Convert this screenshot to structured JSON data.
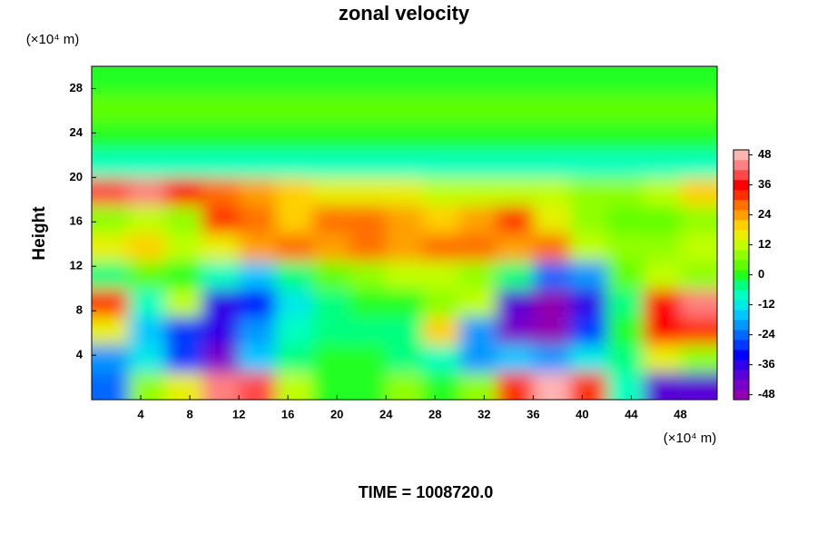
{
  "chart_data": {
    "type": "contour",
    "title": "zonal velocity",
    "y_unit": "(×10⁴ m)",
    "x_unit": "(×10⁴ m)",
    "ylabel": "Height",
    "footer": "TIME = 1008720.0",
    "xlim": [
      0,
      51
    ],
    "ylim": [
      0,
      30
    ],
    "xticks": [
      4,
      8,
      12,
      16,
      20,
      24,
      28,
      32,
      36,
      40,
      44,
      48
    ],
    "yticks": [
      4,
      8,
      12,
      16,
      20,
      24,
      28
    ],
    "zlim": [
      -50,
      50
    ],
    "zticks": [
      48,
      36,
      24,
      12,
      0,
      -12,
      -24,
      -36,
      -48
    ],
    "colors": [
      "#9000b0",
      "#7a00c8",
      "#5a00d8",
      "#3000e8",
      "#0000ff",
      "#0038ff",
      "#0068ff",
      "#0098ff",
      "#00c8ff",
      "#00e8e8",
      "#00ffc0",
      "#00ff80",
      "#20ff20",
      "#60ff00",
      "#90ff00",
      "#c0ff00",
      "#e8f000",
      "#ffd000",
      "#ffa000",
      "#ff7000",
      "#ff3000",
      "#ff0000",
      "#ff4848",
      "#ff8080",
      "#ffb4b4"
    ],
    "x": [
      1.5,
      4.5,
      7.5,
      10.5,
      13.5,
      16.5,
      19.5,
      22.5,
      25.5,
      28.5,
      31.5,
      34.5,
      37.5,
      40.5,
      43.5,
      46.5,
      49.5
    ],
    "y": [
      1.25,
      3.75,
      6.25,
      8.75,
      11.25,
      13.75,
      16.25,
      18.75,
      21.25,
      23.75,
      26.25,
      28.75
    ],
    "z": [
      [
        -24,
        8,
        16,
        44,
        40,
        10,
        0,
        -2,
        8,
        0,
        8,
        30,
        46,
        30,
        -10,
        -40,
        -40
      ],
      [
        -20,
        -12,
        -28,
        -44,
        -16,
        -4,
        -2,
        0,
        -6,
        -8,
        -20,
        -16,
        -20,
        -12,
        -4,
        16,
        6
      ],
      [
        16,
        -16,
        -30,
        -38,
        -20,
        -10,
        -6,
        -4,
        -4,
        20,
        -20,
        -44,
        -48,
        -30,
        0,
        36,
        30
      ],
      [
        30,
        -10,
        12,
        -36,
        -32,
        -12,
        -4,
        -2,
        0,
        6,
        10,
        -40,
        -48,
        -36,
        -4,
        36,
        44
      ],
      [
        -6,
        2,
        0,
        -10,
        -16,
        -4,
        4,
        8,
        10,
        12,
        8,
        -4,
        -24,
        -20,
        2,
        10,
        6
      ],
      [
        14,
        18,
        12,
        16,
        24,
        28,
        24,
        26,
        22,
        28,
        26,
        24,
        28,
        12,
        6,
        8,
        10
      ],
      [
        6,
        10,
        8,
        30,
        26,
        20,
        26,
        28,
        22,
        20,
        24,
        30,
        16,
        8,
        4,
        4,
        6
      ],
      [
        40,
        44,
        36,
        28,
        24,
        20,
        16,
        14,
        14,
        12,
        12,
        10,
        10,
        8,
        8,
        10,
        20
      ],
      [
        -8,
        -8,
        -8,
        -8,
        -8,
        -8,
        -8,
        -8,
        -8,
        -8,
        -8,
        -8,
        -8,
        -8,
        -8,
        -8,
        -8
      ],
      [
        -2,
        -2,
        -2,
        -2,
        -2,
        -2,
        -2,
        -2,
        -2,
        -2,
        -2,
        -2,
        -2,
        -2,
        -2,
        -2,
        -2
      ],
      [
        2,
        2,
        2,
        2,
        2,
        2,
        2,
        2,
        2,
        2,
        2,
        2,
        2,
        2,
        2,
        2,
        2
      ],
      [
        0,
        0,
        0,
        0,
        0,
        0,
        0,
        0,
        0,
        0,
        0,
        0,
        0,
        0,
        0,
        0,
        0
      ]
    ]
  }
}
